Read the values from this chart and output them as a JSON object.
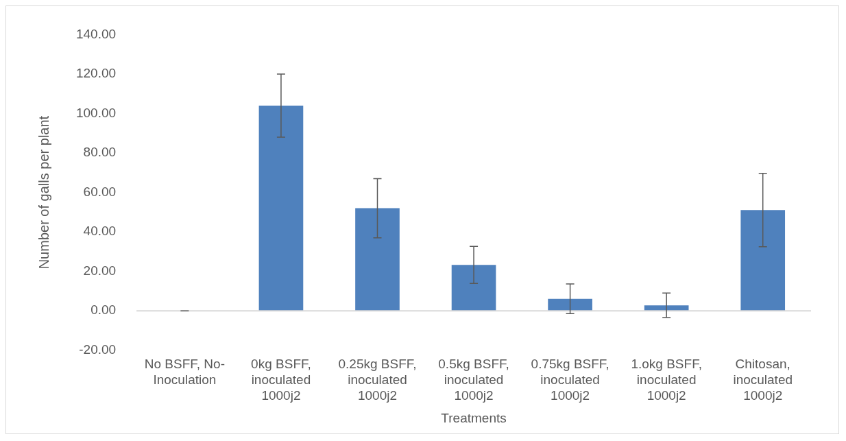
{
  "chart_data": {
    "type": "bar",
    "xlabel": "Treatments",
    "ylabel": "Number of galls per plant",
    "categories": [
      "No BSFF, No-Inoculation",
      "0kg BSFF, inoculated 1000j2",
      "0.25kg BSFF, inoculated 1000j2",
      "0.5kg BSFF, inoculated 1000j2",
      "0.75kg BSFF, inoculated 1000j2",
      "1.okg BSFF, inoculated 1000j2",
      "Chitosan, inoculated 1000j2"
    ],
    "values": [
      0,
      104,
      52,
      23.3,
      6.1,
      2.8,
      51.1
    ],
    "errors": [
      0,
      16,
      15,
      9.4,
      7.5,
      6.2,
      18.6
    ],
    "color": "#4f81bd",
    "ylim": [
      -20,
      140
    ],
    "yticks": [
      {
        "value": -20,
        "label": "-20.00"
      },
      {
        "value": 0,
        "label": "0.00"
      },
      {
        "value": 20,
        "label": "20.00"
      },
      {
        "value": 40,
        "label": "40.00"
      },
      {
        "value": 60,
        "label": "60.00"
      },
      {
        "value": 80,
        "label": "80.00"
      },
      {
        "value": 100,
        "label": "100.00"
      },
      {
        "value": 120,
        "label": "120.00"
      },
      {
        "value": 140,
        "label": "140.00"
      }
    ],
    "ref_lines": [
      {
        "axis": "y",
        "value": 0,
        "color": "#d9d9d9"
      }
    ],
    "grid": false
  }
}
